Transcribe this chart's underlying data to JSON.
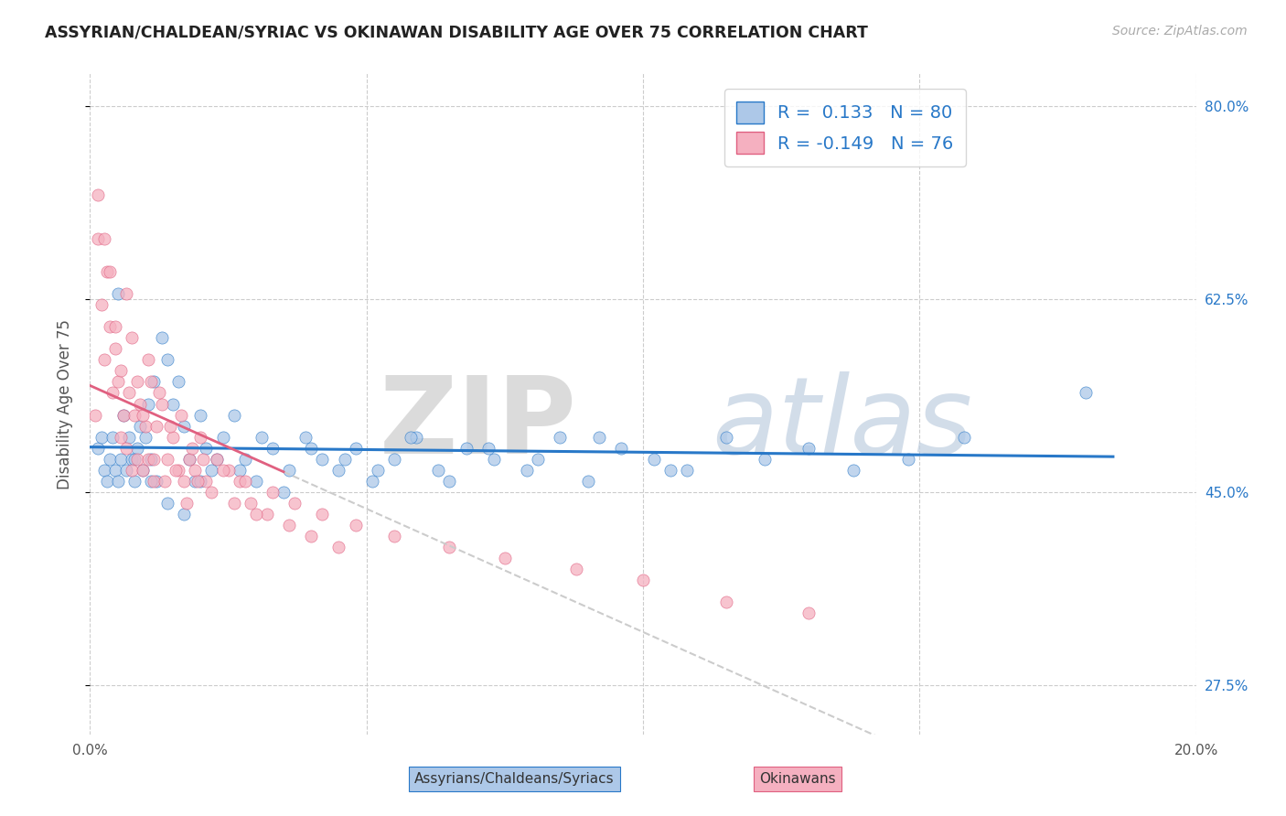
{
  "title": "ASSYRIAN/CHALDEAN/SYRIAC VS OKINAWAN DISABILITY AGE OVER 75 CORRELATION CHART",
  "ylabel": "Disability Age Over 75",
  "source_text": "Source: ZipAtlas.com",
  "xlim": [
    0.0,
    20.0
  ],
  "ylim": [
    23.0,
    83.0
  ],
  "R_blue": 0.133,
  "N_blue": 80,
  "R_pink": -0.149,
  "N_pink": 76,
  "blue_color": "#adc8e8",
  "pink_color": "#f5b0c0",
  "blue_line_color": "#2878c8",
  "pink_line_color": "#e06080",
  "legend_label_blue": "Assyrians/Chaldeans/Syriacs",
  "legend_label_pink": "Okinawans",
  "blue_scatter_x": [
    0.15,
    0.2,
    0.25,
    0.3,
    0.35,
    0.4,
    0.45,
    0.5,
    0.55,
    0.6,
    0.65,
    0.7,
    0.75,
    0.8,
    0.85,
    0.9,
    0.95,
    1.0,
    1.05,
    1.1,
    1.15,
    1.2,
    1.3,
    1.4,
    1.5,
    1.6,
    1.7,
    1.8,
    1.9,
    2.0,
    2.1,
    2.2,
    2.4,
    2.6,
    2.8,
    3.0,
    3.3,
    3.6,
    3.9,
    4.2,
    4.5,
    4.8,
    5.1,
    5.5,
    5.9,
    6.3,
    6.8,
    7.3,
    7.9,
    8.5,
    9.0,
    9.6,
    10.2,
    10.8,
    11.5,
    12.2,
    13.0,
    13.8,
    14.8,
    15.8,
    0.5,
    0.8,
    1.1,
    1.4,
    1.7,
    2.0,
    2.3,
    2.7,
    3.1,
    3.5,
    4.0,
    4.6,
    5.2,
    5.8,
    6.5,
    7.2,
    8.1,
    9.2,
    10.5,
    18.0
  ],
  "blue_scatter_y": [
    49,
    50,
    47,
    46,
    48,
    50,
    47,
    46,
    48,
    52,
    47,
    50,
    48,
    46,
    49,
    51,
    47,
    50,
    53,
    48,
    55,
    46,
    59,
    57,
    53,
    55,
    51,
    48,
    46,
    52,
    49,
    47,
    50,
    52,
    48,
    46,
    49,
    47,
    50,
    48,
    47,
    49,
    46,
    48,
    50,
    47,
    49,
    48,
    47,
    50,
    46,
    49,
    48,
    47,
    50,
    48,
    49,
    47,
    48,
    50,
    63,
    48,
    46,
    44,
    43,
    46,
    48,
    47,
    50,
    45,
    49,
    48,
    47,
    50,
    46,
    49,
    48,
    50,
    47,
    54
  ],
  "pink_scatter_x": [
    0.1,
    0.15,
    0.2,
    0.25,
    0.3,
    0.35,
    0.4,
    0.45,
    0.5,
    0.55,
    0.6,
    0.65,
    0.7,
    0.75,
    0.8,
    0.85,
    0.9,
    0.95,
    1.0,
    1.05,
    1.1,
    1.15,
    1.2,
    1.3,
    1.4,
    1.5,
    1.6,
    1.7,
    1.8,
    1.9,
    2.0,
    2.1,
    2.3,
    2.5,
    2.7,
    2.9,
    3.2,
    3.6,
    4.0,
    4.5,
    0.15,
    0.25,
    0.35,
    0.45,
    0.55,
    0.65,
    0.75,
    0.85,
    0.95,
    1.05,
    1.15,
    1.25,
    1.35,
    1.45,
    1.55,
    1.65,
    1.75,
    1.85,
    1.95,
    2.05,
    2.2,
    2.4,
    2.6,
    2.8,
    3.0,
    3.3,
    3.7,
    4.2,
    4.8,
    5.5,
    6.5,
    7.5,
    8.8,
    10.0,
    11.5,
    13.0
  ],
  "pink_scatter_y": [
    52,
    68,
    62,
    57,
    65,
    60,
    54,
    58,
    55,
    50,
    52,
    49,
    54,
    47,
    52,
    48,
    53,
    47,
    51,
    48,
    55,
    46,
    51,
    53,
    48,
    50,
    47,
    46,
    48,
    47,
    50,
    46,
    48,
    47,
    46,
    44,
    43,
    42,
    41,
    40,
    72,
    68,
    65,
    60,
    56,
    63,
    59,
    55,
    52,
    57,
    48,
    54,
    46,
    51,
    47,
    52,
    44,
    49,
    46,
    48,
    45,
    47,
    44,
    46,
    43,
    45,
    44,
    43,
    42,
    41,
    40,
    39,
    38,
    37,
    35,
    34
  ]
}
